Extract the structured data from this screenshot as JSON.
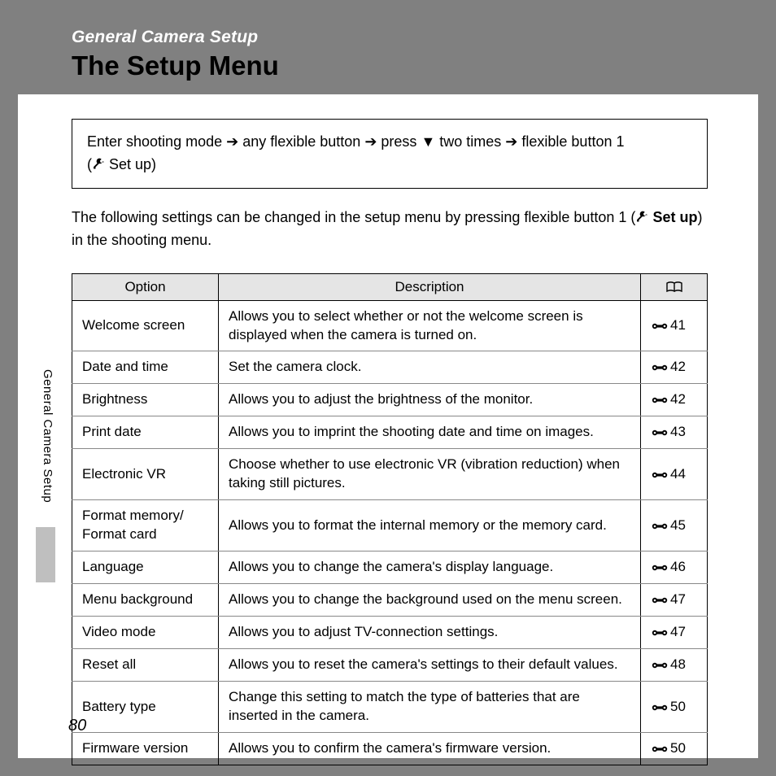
{
  "header": {
    "section": "General Camera Setup",
    "title": "The Setup Menu"
  },
  "navbox": {
    "line1_a": "Enter shooting mode ",
    "line1_b": " any flexible button ",
    "line1_c": " press ",
    "line1_d": " two times ",
    "line1_e": " flexible button 1",
    "line2_a": "(",
    "line2_b": " Set up)"
  },
  "intro": {
    "part1": "The following settings can be changed in the setup menu by pressing flexible button 1 (",
    "bold": "Set up",
    "part2": ") in the shooting menu."
  },
  "table": {
    "headers": {
      "c1": "Option",
      "c2": "Description"
    },
    "rows": [
      {
        "option": "Welcome screen",
        "desc": "Allows you to select whether or not the welcome screen is displayed when the camera is turned on.",
        "ref": "41"
      },
      {
        "option": "Date and time",
        "desc": "Set the camera clock.",
        "ref": "42"
      },
      {
        "option": "Brightness",
        "desc": "Allows you to adjust the brightness of the monitor.",
        "ref": "42"
      },
      {
        "option": "Print date",
        "desc": "Allows you to imprint the shooting date and time on images.",
        "ref": "43"
      },
      {
        "option": "Electronic VR",
        "desc": "Choose whether to use electronic VR (vibration reduction) when taking still pictures.",
        "ref": "44"
      },
      {
        "option": "Format memory/\nFormat card",
        "desc": "Allows you to format the internal memory or the memory card.",
        "ref": "45"
      },
      {
        "option": "Language",
        "desc": "Allows you to change the camera's display language.",
        "ref": "46"
      },
      {
        "option": "Menu background",
        "desc": "Allows you to change the background used on the menu screen.",
        "ref": "47"
      },
      {
        "option": "Video mode",
        "desc": "Allows you to adjust TV-connection settings.",
        "ref": "47"
      },
      {
        "option": "Reset all",
        "desc": "Allows you to reset the camera's settings to their default values.",
        "ref": "48"
      },
      {
        "option": "Battery type",
        "desc": "Change this setting to match the type of batteries that are inserted in the camera.",
        "ref": "50"
      },
      {
        "option": "Firmware version",
        "desc": "Allows you to confirm the camera's firmware version.",
        "ref": "50"
      }
    ]
  },
  "side_label": "General Camera Setup",
  "page_number": "80",
  "glyphs": {
    "arrow_right": "➔",
    "arrow_down": "▼"
  },
  "colors": {
    "page_bg": "#ffffff",
    "outer_bg": "#808080",
    "header_bg": "#808080",
    "th_bg": "#e5e5e5",
    "border": "#000000",
    "row_border": "#888888",
    "side_tab": "#bfbfbf"
  }
}
